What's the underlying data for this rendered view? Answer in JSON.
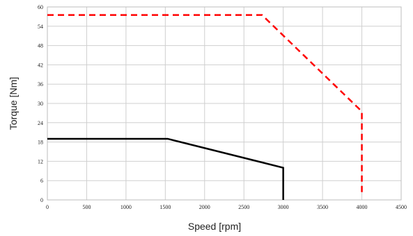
{
  "chart_data": {
    "type": "line",
    "title": "",
    "xlabel": "Speed [rpm]",
    "ylabel": "Torque [Nm]",
    "xlim": [
      0,
      4500
    ],
    "ylim": [
      0,
      60
    ],
    "xticks": [
      0,
      500,
      1000,
      1500,
      2000,
      2500,
      3000,
      3500,
      4000,
      4500
    ],
    "yticks": [
      0,
      6,
      12,
      18,
      24,
      30,
      36,
      42,
      48,
      54,
      60
    ],
    "grid": true,
    "legend": "none",
    "series": [
      {
        "line_style": "dashed",
        "color": "#ff0000",
        "x": [
          0,
          2730,
          4000,
          4000
        ],
        "y": [
          57.5,
          57.5,
          27.5,
          1.5
        ]
      },
      {
        "line_style": "solid",
        "color": "#000000",
        "x": [
          0,
          1530,
          3000,
          3000
        ],
        "y": [
          19,
          19,
          10,
          0
        ]
      }
    ]
  }
}
